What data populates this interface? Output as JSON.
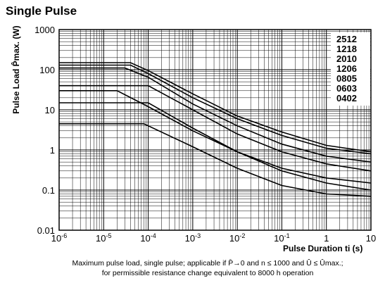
{
  "title": "Single Pulse",
  "axis": {
    "ylabel_text": "Pulse Load P̂max. (W)",
    "xlabel_text": "Pulse Duration ti (s)"
  },
  "caption": {
    "line1": "Maximum pulse load, single pulse; applicable if P̄→0 and n ≤ 1000 and Û ≤ Ûmax.;",
    "line2": "for permissible resistance change equivalent to 8000 h operation"
  },
  "chart_data": {
    "type": "line",
    "title": "Single Pulse",
    "xlabel": "Pulse Duration ti (s)",
    "ylabel": "Pulse Load P̂max. (W)",
    "xscale": "log",
    "yscale": "log",
    "xlim": [
      1e-06,
      10
    ],
    "ylim": [
      0.01,
      1000
    ],
    "grid": true,
    "legend_position": "top-right",
    "x_tick_labels": [
      "10-6",
      "10-5",
      "10-4",
      "10-3",
      "10-2",
      "10-1",
      "1",
      "10"
    ],
    "y_tick_labels": [
      "0.01",
      "0.1",
      "1",
      "10",
      "100",
      "1000"
    ],
    "series": [
      {
        "name": "2512",
        "x": [
          1e-06,
          4e-05,
          0.0001,
          0.001,
          0.01,
          0.1,
          1,
          10
        ],
        "y": [
          150,
          150,
          95,
          25,
          7,
          2.8,
          1.3,
          0.9
        ]
      },
      {
        "name": "1218",
        "x": [
          1e-06,
          4e-05,
          0.0001,
          0.001,
          0.01,
          0.1,
          1,
          10
        ],
        "y": [
          130,
          130,
          80,
          20,
          6,
          2.3,
          1.1,
          0.8
        ]
      },
      {
        "name": "2010",
        "x": [
          1e-06,
          3e-05,
          0.0001,
          0.001,
          0.01,
          0.1,
          1,
          10
        ],
        "y": [
          110,
          110,
          65,
          14,
          4,
          1.4,
          0.7,
          0.5
        ]
      },
      {
        "name": "1206",
        "x": [
          1e-06,
          1.5e-05,
          0.0001,
          0.001,
          0.01,
          0.1,
          1,
          10
        ],
        "y": [
          40,
          40,
          40,
          10,
          2.5,
          0.9,
          0.45,
          0.3
        ]
      },
      {
        "name": "0805",
        "x": [
          1e-06,
          2e-05,
          0.0001,
          0.001,
          0.01,
          0.1,
          1,
          10
        ],
        "y": [
          30,
          30,
          12,
          3,
          0.9,
          0.35,
          0.2,
          0.15
        ]
      },
      {
        "name": "0603",
        "x": [
          1e-06,
          0.0001,
          0.001,
          0.01,
          0.1,
          1,
          10
        ],
        "y": [
          15,
          15,
          3.5,
          0.9,
          0.3,
          0.15,
          0.1
        ]
      },
      {
        "name": "0402",
        "x": [
          1e-06,
          8e-05,
          0.001,
          0.01,
          0.1,
          1,
          10
        ],
        "y": [
          4.5,
          4.5,
          1.2,
          0.35,
          0.13,
          0.08,
          0.07
        ]
      }
    ]
  }
}
